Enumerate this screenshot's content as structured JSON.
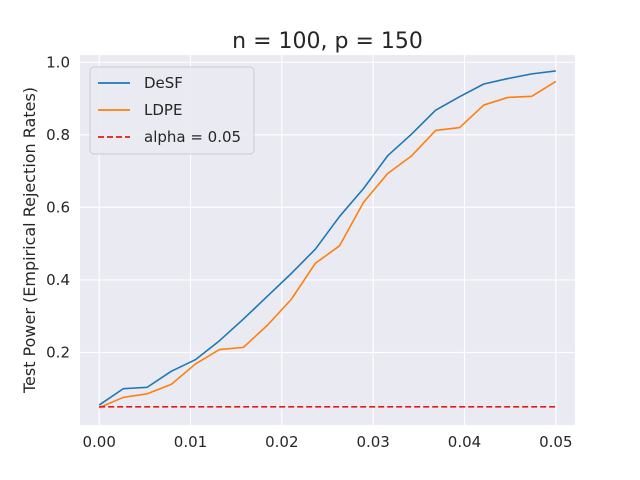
{
  "chart_data": {
    "type": "line",
    "title": "n  = 100, p = 150",
    "xlabel": "",
    "ylabel": "Test Power (Empirical Rejection Rates)",
    "xlim": [
      -0.0021,
      0.0521
    ],
    "ylim": [
      0.0,
      1.02
    ],
    "xticks": [
      0.0,
      0.01,
      0.02,
      0.03,
      0.04,
      0.05
    ],
    "xtick_labels": [
      "0.00",
      "0.01",
      "0.02",
      "0.03",
      "0.04",
      "0.05"
    ],
    "yticks": [
      0.2,
      0.4,
      0.6,
      0.8,
      1.0
    ],
    "ytick_labels": [
      "0.2",
      "0.4",
      "0.6",
      "0.8",
      "1.0"
    ],
    "grid": true,
    "legend_position": "top-left",
    "background_color": "#eaeaf2",
    "x": [
      0.0,
      0.00263,
      0.00526,
      0.00789,
      0.01053,
      0.01316,
      0.01579,
      0.01842,
      0.02105,
      0.02368,
      0.02632,
      0.02895,
      0.03158,
      0.03421,
      0.03684,
      0.03947,
      0.04211,
      0.04474,
      0.04737,
      0.05
    ],
    "series": [
      {
        "name": "DeSF",
        "color": "#1f77b4",
        "style": "solid",
        "values": [
          0.055,
          0.1,
          0.104,
          0.148,
          0.18,
          0.232,
          0.292,
          0.355,
          0.418,
          0.485,
          0.575,
          0.652,
          0.742,
          0.802,
          0.868,
          0.905,
          0.94,
          0.955,
          0.968,
          0.976
        ]
      },
      {
        "name": "LDPE",
        "color": "#ff7f0e",
        "style": "solid",
        "values": [
          0.048,
          0.076,
          0.086,
          0.112,
          0.168,
          0.208,
          0.214,
          0.275,
          0.347,
          0.446,
          0.494,
          0.614,
          0.693,
          0.742,
          0.812,
          0.82,
          0.882,
          0.903,
          0.906,
          0.947
        ]
      },
      {
        "name": "alpha = 0.05",
        "color": "#e41a1c",
        "style": "dashed",
        "values": [
          0.05,
          0.05,
          0.05,
          0.05,
          0.05,
          0.05,
          0.05,
          0.05,
          0.05,
          0.05,
          0.05,
          0.05,
          0.05,
          0.05,
          0.05,
          0.05,
          0.05,
          0.05,
          0.05,
          0.05
        ]
      }
    ]
  }
}
